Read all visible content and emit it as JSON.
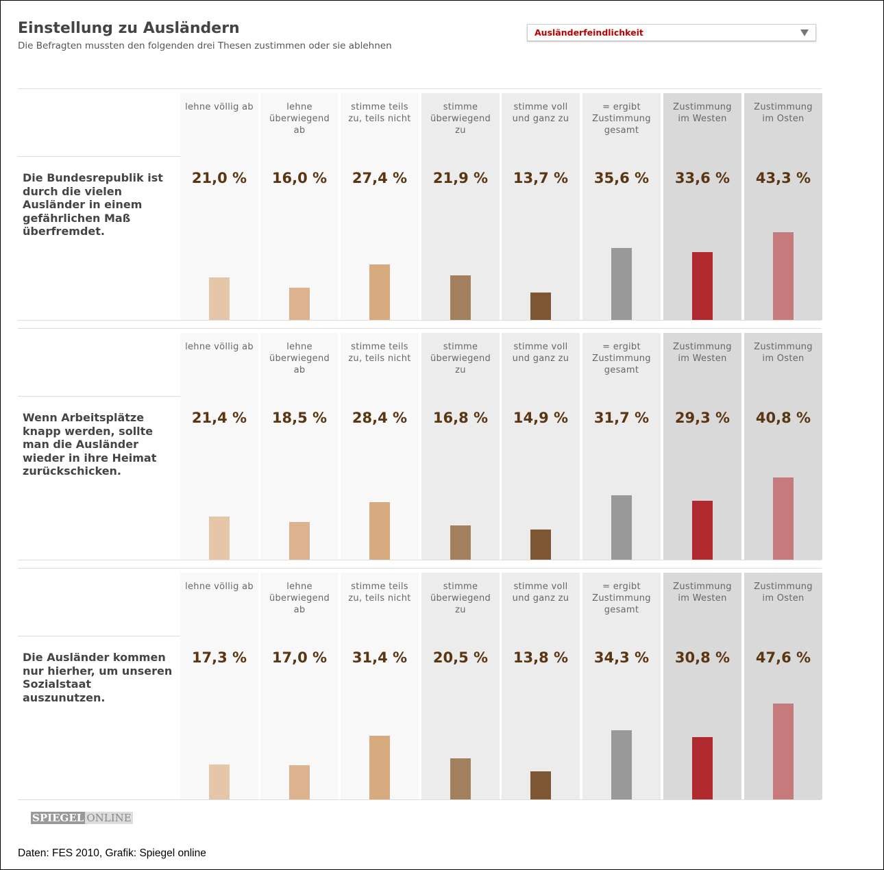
{
  "header": {
    "title": "Einstellung zu Ausländern",
    "subtitle": "Die Befragten mussten den folgenden drei Thesen zustimmen oder sie ablehnen",
    "dropdown": "Ausländerfeindlichkeit"
  },
  "chart_data": [
    {
      "type": "bar",
      "title": "Die Bundesrepublik ist durch die vielen Ausländer in einem gefährlichen Maß überfremdet.",
      "categories": [
        "lehne völlig ab",
        "lehne überwiegend ab",
        "stimme teils zu, teils nicht",
        "stimme überwiegend zu",
        "stimme voll und ganz zu",
        "= ergibt Zustimmung gesamt",
        "Zustimmung im Westen",
        "Zustimmung im Osten"
      ],
      "values": [
        21.0,
        16.0,
        27.4,
        21.9,
        13.7,
        35.6,
        33.6,
        43.3
      ],
      "value_labels": [
        "21,0 %",
        "16,0 %",
        "27,4 %",
        "21,9 %",
        "13,7 %",
        "35,6 %",
        "33,6 %",
        "43,3 %"
      ],
      "colors": [
        "#e5c6a9",
        "#dcb38e",
        "#d7aa80",
        "#a3815f",
        "#7d5733",
        "#999999",
        "#b0292e",
        "#c77a7c"
      ],
      "ylim": [
        0,
        80
      ]
    },
    {
      "type": "bar",
      "title": "Wenn Arbeitsplätze knapp werden, sollte man die Ausländer wieder in ihre Heimat zurückschicken.",
      "categories": [
        "lehne völlig ab",
        "lehne überwiegend ab",
        "stimme teils zu, teils nicht",
        "stimme überwiegend zu",
        "stimme voll und ganz zu",
        "= ergibt Zustimmung gesamt",
        "Zustimmung im Westen",
        "Zustimmung im Osten"
      ],
      "values": [
        21.4,
        18.5,
        28.4,
        16.8,
        14.9,
        31.7,
        29.3,
        40.8
      ],
      "value_labels": [
        "21,4 %",
        "18,5 %",
        "28,4 %",
        "16,8 %",
        "14,9 %",
        "31,7 %",
        "29,3 %",
        "40,8 %"
      ],
      "colors": [
        "#e5c6a9",
        "#dcb38e",
        "#d7aa80",
        "#a3815f",
        "#7d5733",
        "#999999",
        "#b0292e",
        "#c77a7c"
      ],
      "ylim": [
        0,
        80
      ]
    },
    {
      "type": "bar",
      "title": "Die Ausländer kommen nur hierher, um unseren Sozialstaat auszunutzen.",
      "categories": [
        "lehne völlig ab",
        "lehne überwiegend ab",
        "stimme teils zu, teils nicht",
        "stimme überwiegend zu",
        "stimme voll und ganz zu",
        "= ergibt Zustimmung gesamt",
        "Zustimmung im Westen",
        "Zustimmung im Osten"
      ],
      "values": [
        17.3,
        17.0,
        31.4,
        20.5,
        13.8,
        34.3,
        30.8,
        47.6
      ],
      "value_labels": [
        "17,3 %",
        "17,0 %",
        "31,4 %",
        "20,5 %",
        "13,8 %",
        "34,3 %",
        "30,8 %",
        "47,6 %"
      ],
      "colors": [
        "#e5c6a9",
        "#dcb38e",
        "#d7aa80",
        "#a3815f",
        "#7d5733",
        "#999999",
        "#b0292e",
        "#c77a7c"
      ],
      "ylim": [
        0,
        80
      ]
    }
  ],
  "footer": {
    "logo": [
      "SPIEGEL",
      "ONLINE"
    ],
    "source": "Daten: FES 2010, Grafik: Spiegel online"
  }
}
